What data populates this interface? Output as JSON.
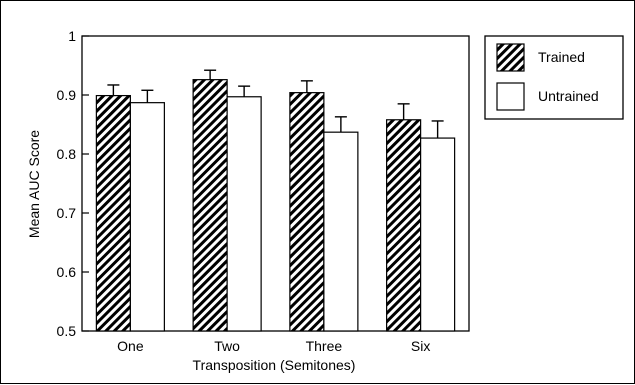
{
  "chart_data": {
    "type": "bar",
    "title": "",
    "xlabel": "Transposition (Semitones)",
    "ylabel": "Mean AUC Score",
    "ylim": [
      0.5,
      1
    ],
    "yticks": [
      0.5,
      0.6,
      0.7,
      0.8,
      0.9,
      1
    ],
    "ytick_labels": [
      "0.5",
      "0.6",
      "0.7",
      "0.8",
      "0.9",
      "1"
    ],
    "categories": [
      "One",
      "Two",
      "Three",
      "Six"
    ],
    "series": [
      {
        "name": "Trained",
        "fill": "hatched",
        "values": [
          0.899,
          0.926,
          0.904,
          0.858
        ],
        "errors": [
          0.018,
          0.016,
          0.02,
          0.027
        ]
      },
      {
        "name": "Untrained",
        "fill": "white",
        "values": [
          0.887,
          0.897,
          0.837,
          0.827
        ],
        "errors": [
          0.021,
          0.018,
          0.026,
          0.029
        ]
      }
    ],
    "legend": "outside-top-right",
    "grid": false
  }
}
